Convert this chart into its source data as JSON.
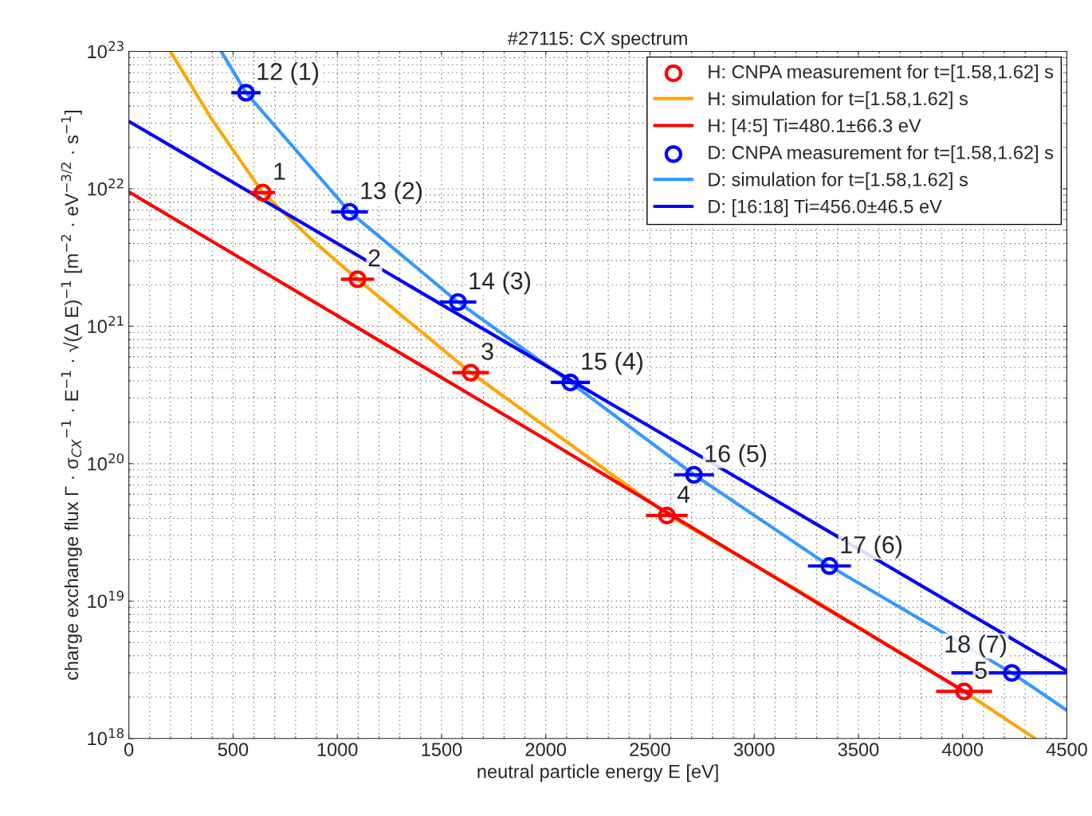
{
  "chart_data": {
    "type": "scatter",
    "title": "#27115: CX spectrum",
    "xlabel": "neutral particle energy E [eV]",
    "ylabel": "charge exchange flux Γ · σ$_{CX}$$^{−1}$ · E$^{−1}$ · √(Δ E)$^{−1}$ [m$^{−2}$ · eV$^{−3/2}$ · s$^{−1}$]",
    "log": "y",
    "grid": true,
    "legend": "top right",
    "xlim": [
      0,
      4500
    ],
    "xticks": [
      0,
      500,
      1000,
      1500,
      2000,
      2500,
      3000,
      3500,
      4000,
      4500
    ],
    "ylim": [
      1e+18,
      1e+23
    ],
    "yticks": [
      {
        "value": 1e+18,
        "label": "10$^{18}$"
      },
      {
        "value": 1e+19,
        "label": "10$^{19}$"
      },
      {
        "value": 1e+20,
        "label": "10$^{20}$"
      },
      {
        "value": 1e+21,
        "label": "10$^{21}$"
      },
      {
        "value": 1e+22,
        "label": "10$^{22}$"
      },
      {
        "value": 1e+23,
        "label": "10$^{23}$"
      }
    ],
    "series": [
      {
        "marker": "circle",
        "name": "H: CNPA measurement for t=[1.58,1.62] s",
        "color": "#ff0000",
        "x": [
          642,
          1097,
          1640,
          2581,
          4007
        ],
        "values": [
          9.4e+21,
          2.2e+21,
          4.6e+20,
          4.2e+19,
          2.2e+18
        ],
        "xerrors": [
          60,
          80,
          88,
          100,
          134
        ]
      },
      {
        "type": "line",
        "name": "H: simulation for t=[1.58,1.62] s",
        "color": "#ffa500",
        "x": [
          199,
          398,
          642,
          875,
          1097,
          1640,
          2581,
          3208,
          4007,
          4347
        ],
        "values": [
          1e+23,
          3.2e+22,
          9.4e+21,
          4.3e+21,
          2.2e+21,
          4.6e+20,
          4.3e+19,
          1.2e+19,
          2.2e+18,
          1e+18
        ]
      },
      {
        "type": "line",
        "name": "H: [4:5] Ti=480.1±66.3 eV",
        "color": "#ff0000",
        "x": [
          0,
          2000,
          4030
        ],
        "values": [
          9.5e+21,
          1.5e+20,
          2.1e+18
        ]
      },
      {
        "marker": "circle",
        "name": "D: CNPA measurement for t=[1.58,1.62] s",
        "color": "#0000ff",
        "x": [
          562,
          1059,
          1579,
          2118,
          2711,
          3361,
          4236
        ],
        "values": [
          5e+22,
          6.8e+21,
          1.5e+21,
          3.9e+20,
          8.3e+19,
          1.8e+19,
          3e+18
        ],
        "xerrors": [
          70,
          88,
          88,
          94,
          96,
          103,
          [
            3946,
            4500
          ]
        ]
      },
      {
        "type": "line",
        "name": "D: simulation for t=[1.58,1.62] s",
        "color": "#3399ff",
        "x": [
          443,
          562,
          1059,
          1579,
          2118,
          2711,
          3361,
          4236,
          4500
        ],
        "values": [
          1e+23,
          5e+22,
          6.8e+21,
          1.5e+21,
          3.9e+20,
          8.3e+19,
          1.8e+19,
          3e+18,
          1.6e+18
        ]
      },
      {
        "type": "line",
        "name": "D: [16:18] Ti=456.0±46.5 eV",
        "color": "#0000ff",
        "x": [
          0,
          4500
        ],
        "values": [
          3.1e+22,
          3.1e+18
        ]
      }
    ],
    "annotations": [
      {
        "text": "1",
        "x": 642,
        "y": 9.4e+21
      },
      {
        "text": "2",
        "x": 1097,
        "y": 2.2e+21
      },
      {
        "text": "3",
        "x": 1640,
        "y": 4.6e+20
      },
      {
        "text": "4",
        "x": 2581,
        "y": 4.2e+19
      },
      {
        "text": "5",
        "x": 4007,
        "y": 2.2e+18
      },
      {
        "text": "12 (1)",
        "x": 562,
        "y": 5e+22
      },
      {
        "text": "13 (2)",
        "x": 1059,
        "y": 6.8e+21
      },
      {
        "text": "14 (3)",
        "x": 1579,
        "y": 1.5e+21
      },
      {
        "text": "15 (4)",
        "x": 2118,
        "y": 3.9e+20
      },
      {
        "text": "16 (5)",
        "x": 2711,
        "y": 8.3e+19
      },
      {
        "text": "17 (6)",
        "x": 3361,
        "y": 1.8e+19
      },
      {
        "text": "18 (7)",
        "x": 4236,
        "y": 3e+18
      }
    ]
  }
}
